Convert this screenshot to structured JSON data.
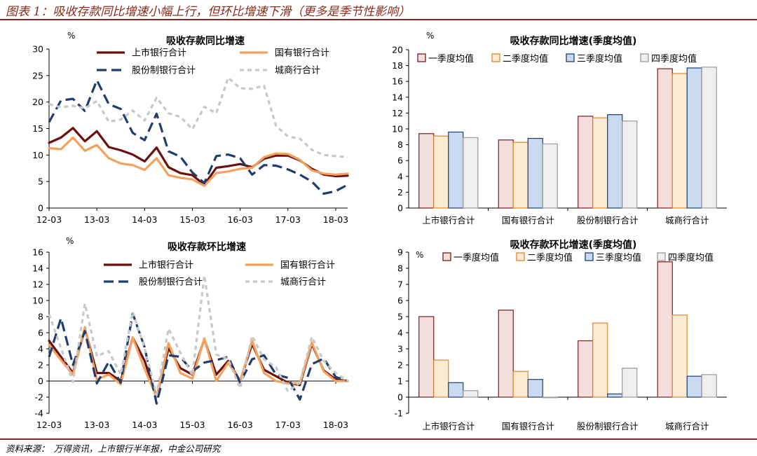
{
  "figure": {
    "title": "图表 1：吸收存款同比增速小幅上行，但环比增速下滑（更多是季节性影响）",
    "source": "资料来源：　万得资讯，上市银行半年报，中金公司研究"
  },
  "colors": {
    "listed": "#6b0f0f",
    "state": "#f4a15d",
    "joint": "#1f3d6e",
    "city": "#c8c8c8",
    "q1": "#f3dede",
    "q2": "#fdebd6",
    "q3": "#c9d9ef",
    "q4": "#efefef",
    "q1_border": "#7a1a1a",
    "q2_border": "#e0862a",
    "q3_border": "#1f3d6e",
    "q4_border": "#9a9a9a"
  },
  "chart_data": [
    {
      "id": "yoy-line",
      "type": "line",
      "title": "吸收存款同比增速",
      "unit": "%",
      "ylim": [
        0,
        30
      ],
      "yticks": [
        0,
        5,
        10,
        15,
        20,
        25,
        30
      ],
      "x_labels": [
        "12-03",
        "13-03",
        "14-03",
        "15-03",
        "16-03",
        "17-03",
        "18-03"
      ],
      "x_range": [
        0,
        25
      ],
      "x": [
        0,
        1,
        2,
        3,
        4,
        5,
        6,
        7,
        8,
        9,
        10,
        11,
        12,
        13,
        14,
        15,
        16,
        17,
        18,
        19,
        20,
        21,
        22,
        23,
        24,
        25
      ],
      "legend_position": "top",
      "series": [
        {
          "key": "listed",
          "name": "上市银行合计",
          "style": "solid",
          "values": [
            12.3,
            13.3,
            15.1,
            12.6,
            14.5,
            11.5,
            10.9,
            10.1,
            8.8,
            11.4,
            7.7,
            6.6,
            6.2,
            4.4,
            7.6,
            7.9,
            8.3,
            7.7,
            9.3,
            9.9,
            9.9,
            9.0,
            7.4,
            6.3,
            6.0,
            6.1
          ]
        },
        {
          "key": "state",
          "name": "国有银行合计",
          "style": "solid",
          "values": [
            11.3,
            11.1,
            13.3,
            10.8,
            11.9,
            9.4,
            8.4,
            8.1,
            7.2,
            9.4,
            6.2,
            5.7,
            5.4,
            4.2,
            6.6,
            6.9,
            7.4,
            7.6,
            9.6,
            10.3,
            10.2,
            9.1,
            7.1,
            6.5,
            6.3,
            6.5
          ]
        },
        {
          "key": "joint",
          "name": "股份制银行合计",
          "style": "dash",
          "values": [
            16.2,
            20.3,
            20.6,
            18.3,
            24.1,
            19.6,
            18.7,
            14.2,
            12.8,
            17.8,
            10.7,
            9.7,
            6.7,
            4.7,
            9.8,
            10.1,
            9.4,
            6.3,
            8.1,
            8.0,
            7.3,
            6.3,
            5.0,
            2.7,
            3.2,
            4.4
          ]
        },
        {
          "key": "city",
          "name": "城商行合计",
          "style": "dot",
          "values": [
            19.6,
            19.0,
            19.3,
            18.8,
            20.2,
            16.3,
            16.7,
            18.4,
            16.5,
            20.8,
            17.9,
            17.2,
            14.9,
            19.1,
            17.9,
            24.6,
            22.6,
            22.5,
            23.1,
            15.5,
            13.5,
            13.1,
            11.0,
            10.0,
            9.8,
            9.6
          ]
        }
      ]
    },
    {
      "id": "yoy-bar",
      "type": "bar",
      "title": "吸收存款同比增速(季度均值)",
      "unit": "%",
      "ylim": [
        0,
        20
      ],
      "yticks": [
        0,
        2,
        4,
        6,
        8,
        10,
        12,
        14,
        16,
        18,
        20
      ],
      "categories": [
        "上市银行合计",
        "国有银行合计",
        "股份制银行合计",
        "城商行合计"
      ],
      "legend_position": "top",
      "series": [
        {
          "key": "q1",
          "name": "一季度均值",
          "values": [
            9.4,
            8.6,
            11.6,
            17.6
          ]
        },
        {
          "key": "q2",
          "name": "二季度均值",
          "values": [
            9.1,
            8.3,
            11.4,
            17.0
          ]
        },
        {
          "key": "q3",
          "name": "三季度均值",
          "values": [
            9.6,
            8.8,
            11.8,
            17.7
          ]
        },
        {
          "key": "q4",
          "name": "四季度均值",
          "values": [
            8.9,
            8.1,
            11.0,
            17.8
          ]
        }
      ]
    },
    {
      "id": "qoq-line",
      "type": "line",
      "title": "吸收存款环比增速",
      "unit": "%",
      "ylim": [
        -4,
        16
      ],
      "yticks": [
        -4,
        -2,
        0,
        2,
        4,
        6,
        8,
        10,
        12,
        14,
        16
      ],
      "x_labels": [
        "12-03",
        "13-03",
        "14-03",
        "15-03",
        "16-03",
        "17-03",
        "18-03"
      ],
      "x_range": [
        0,
        25
      ],
      "x": [
        0,
        1,
        2,
        3,
        4,
        5,
        6,
        7,
        8,
        9,
        10,
        11,
        12,
        13,
        14,
        15,
        16,
        17,
        18,
        19,
        20,
        21,
        22,
        23,
        24,
        25
      ],
      "legend_position": "top",
      "series": [
        {
          "key": "listed",
          "name": "上市银行合计",
          "style": "solid",
          "values": [
            5.0,
            3.0,
            1.0,
            6.5,
            1.0,
            1.0,
            0.0,
            5.4,
            2.5,
            -2.0,
            4.1,
            1.6,
            0.8,
            5.2,
            0.8,
            2.5,
            0.0,
            4.6,
            1.4,
            0.6,
            -0.2,
            -0.5,
            4.6,
            1.3,
            0.2,
            0.0
          ]
        },
        {
          "key": "state",
          "name": "国有银行合计",
          "style": "solid",
          "values": [
            4.5,
            2.6,
            0.8,
            6.7,
            0.2,
            0.8,
            -0.4,
            5.4,
            1.5,
            -2.0,
            4.7,
            1.0,
            0.3,
            5.3,
            0.0,
            2.3,
            0.0,
            5.0,
            1.0,
            0.0,
            -0.3,
            -0.3,
            4.8,
            1.2,
            0.0,
            0.0
          ]
        },
        {
          "key": "joint",
          "name": "股份制银行合计",
          "style": "dash",
          "values": [
            3.0,
            7.8,
            2.0,
            6.2,
            -0.3,
            2.4,
            -0.2,
            8.4,
            4.2,
            -2.8,
            3.2,
            3.0,
            1.2,
            2.3,
            2.6,
            3.0,
            -0.2,
            2.7,
            3.2,
            0.8,
            0.4,
            -2.3,
            2.1,
            2.8,
            0.5,
            0.0
          ]
        },
        {
          "key": "city",
          "name": "城商行合计",
          "style": "dot",
          "values": [
            8.3,
            4.1,
            -0.1,
            9.6,
            3.1,
            3.7,
            0.8,
            8.6,
            4.1,
            -1.7,
            6.5,
            3.5,
            0.7,
            13.1,
            3.3,
            2.7,
            -0.9,
            5.6,
            2.7,
            1.7,
            -1.3,
            -0.2,
            5.5,
            2.5,
            1.0,
            0.0
          ]
        }
      ]
    },
    {
      "id": "qoq-bar",
      "type": "bar",
      "title": "吸收存款环比增速(季度均值)",
      "unit": "%",
      "ylim": [
        -1,
        9
      ],
      "yticks": [
        -1,
        0,
        1,
        2,
        3,
        4,
        5,
        6,
        7,
        8,
        9
      ],
      "categories": [
        "上市银行合计",
        "国有银行合计",
        "股份制银行合计",
        "城商行合计"
      ],
      "legend_position": "top",
      "series": [
        {
          "key": "q1",
          "name": "一季度均值",
          "values": [
            5.0,
            5.4,
            3.5,
            8.4
          ]
        },
        {
          "key": "q2",
          "name": "二季度均值",
          "values": [
            2.3,
            1.6,
            4.6,
            5.1
          ]
        },
        {
          "key": "q3",
          "name": "三季度均值",
          "values": [
            0.9,
            1.1,
            0.2,
            1.3
          ]
        },
        {
          "key": "q4",
          "name": "四季度均值",
          "values": [
            0.4,
            0.0,
            1.8,
            1.4
          ]
        }
      ]
    }
  ]
}
